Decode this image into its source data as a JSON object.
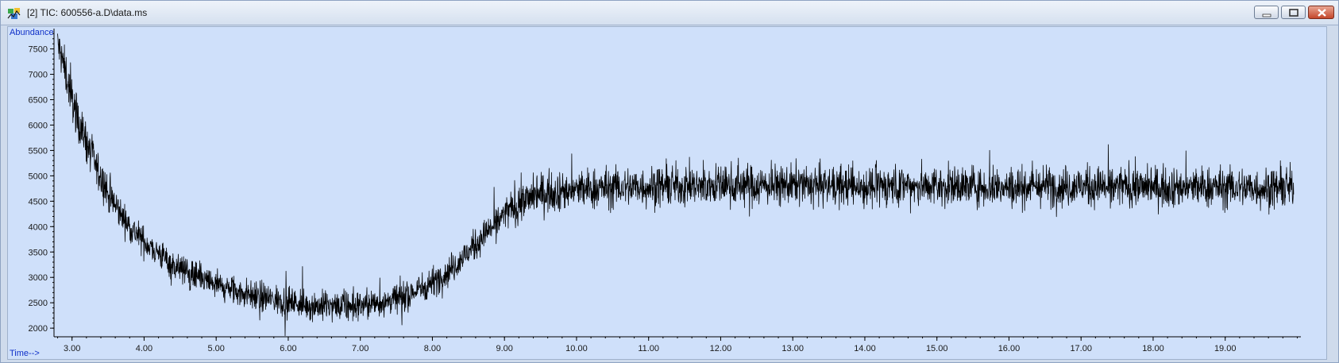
{
  "window": {
    "title": "[2] TIC: 600556-a.D\\data.ms",
    "icon": "chromatogram-app-icon",
    "controls": [
      "minimize-icon",
      "maximize-icon",
      "close-icon"
    ]
  },
  "colors": {
    "plot_background": "#cfe0fa",
    "trace": "#000000",
    "axis_label": "#1030c8"
  },
  "chart_data": {
    "type": "line",
    "title": "",
    "xlabel": "Time-->",
    "ylabel": "Abundance",
    "xlim": [
      2.75,
      20.05
    ],
    "ylim": [
      1830,
      7900
    ],
    "xticks": [
      "3.00",
      "4.00",
      "5.00",
      "6.00",
      "7.00",
      "8.00",
      "9.00",
      "10.00",
      "11.00",
      "12.00",
      "13.00",
      "14.00",
      "15.00",
      "16.00",
      "17.00",
      "18.00",
      "19.00"
    ],
    "yticks": [
      "2000",
      "2500",
      "3000",
      "3500",
      "4000",
      "4500",
      "5000",
      "5500",
      "6000",
      "6500",
      "7000",
      "7500"
    ],
    "grid": false,
    "legend": "none",
    "series": [
      {
        "x": [
          2.8,
          2.9,
          3.0,
          3.1,
          3.2,
          3.3,
          3.4,
          3.5,
          3.6,
          3.7,
          3.8,
          3.9,
          4.0,
          4.2,
          4.4,
          4.6,
          4.8,
          5.0,
          5.2,
          5.4,
          5.6,
          5.8,
          6.0,
          6.2,
          6.4,
          6.6,
          6.8,
          7.0,
          7.2,
          7.4,
          7.6,
          7.8,
          8.0,
          8.2,
          8.4,
          8.6,
          8.8,
          9.0,
          9.2,
          9.4,
          9.6,
          9.8,
          10.0,
          10.25,
          10.5,
          10.75,
          11.0,
          11.25,
          11.5,
          11.75,
          12.0,
          12.25,
          12.5,
          12.75,
          13.0,
          13.25,
          13.5,
          13.75,
          14.0,
          14.25,
          14.5,
          14.75,
          15.0,
          15.25,
          15.5,
          15.75,
          16.0,
          16.25,
          16.5,
          16.75,
          17.0,
          17.25,
          17.5,
          17.75,
          18.0,
          18.25,
          18.5,
          18.75,
          19.0,
          19.25,
          19.5,
          19.75,
          19.95
        ],
        "y": [
          7600,
          7100,
          6500,
          6050,
          5650,
          5300,
          4950,
          4650,
          4400,
          4200,
          4000,
          3850,
          3700,
          3480,
          3250,
          3100,
          2950,
          2850,
          2750,
          2680,
          2620,
          2560,
          2520,
          2470,
          2440,
          2420,
          2420,
          2450,
          2480,
          2540,
          2620,
          2750,
          2900,
          3100,
          3350,
          3650,
          3950,
          4250,
          4450,
          4600,
          4680,
          4700,
          4720,
          4750,
          4770,
          4780,
          4790,
          4800,
          4800,
          4810,
          4820,
          4820,
          4810,
          4820,
          4820,
          4810,
          4800,
          4800,
          4790,
          4800,
          4810,
          4800,
          4790,
          4800,
          4800,
          4790,
          4780,
          4790,
          4800,
          4790,
          4800,
          4790,
          4780,
          4790,
          4780,
          4780,
          4770,
          4780,
          4770,
          4770,
          4760,
          4760,
          4770
        ]
      }
    ]
  }
}
